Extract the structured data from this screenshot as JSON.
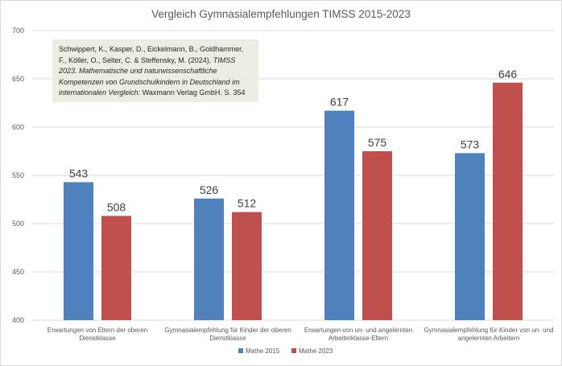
{
  "chart_data": {
    "type": "bar",
    "title": "Vergleich Gymnasialempfehlungen TIMSS 2015-2023",
    "categories": [
      [
        "Erwartungen von Eltern der oberen",
        "Dienstklasse"
      ],
      [
        "Gymnasialempfehlung für Kinder  der oberen",
        "Dienstklasse"
      ],
      [
        "Erwartungen von un- und angelernten",
        "Arbeiterklasse-Eltern"
      ],
      [
        "Gymnasialempfehlung für Kinder von un- und",
        "angelernten Arbeitern"
      ]
    ],
    "series": [
      {
        "name": "Mathe 2015",
        "color": "#4f81bd",
        "values": [
          543,
          526,
          617,
          573
        ]
      },
      {
        "name": "Mathe 2023",
        "color": "#c0504d",
        "values": [
          508,
          512,
          575,
          646
        ]
      }
    ],
    "ylim": [
      400,
      700
    ],
    "yticks": [
      400,
      450,
      500,
      550,
      600,
      650,
      700
    ],
    "xlabel": "",
    "ylabel": "",
    "grid": true,
    "legend": "bottom"
  },
  "source": {
    "text_1": "Schwippert, K., Kasper, D., Eickelmann, B., Goldhammer, F., Köller, O., Selter, C. & Steffensky, M. (2024). ",
    "italic": "TIMSS 2023. Mathematische und naturwissenschaftliche Kompetenzen von Grundschulkindern in Deutschland im internationalen Vergleich:",
    "text_2": " Waxmann Verlag GmbH. S. 354"
  }
}
